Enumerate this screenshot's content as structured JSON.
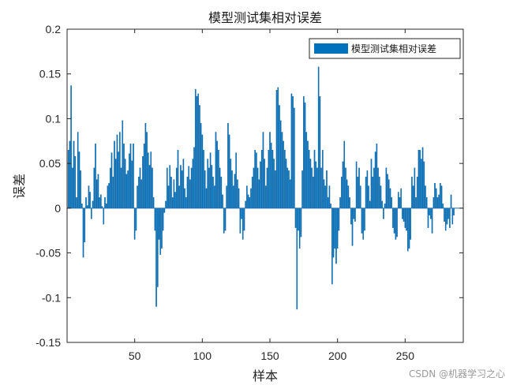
{
  "chart_data": {
    "type": "bar",
    "title": "模型测试集相对误差",
    "xlabel": "样本",
    "ylabel": "误差",
    "xlim": [
      0,
      293
    ],
    "ylim": [
      -0.15,
      0.2
    ],
    "xticks": [
      50,
      100,
      150,
      200,
      250
    ],
    "yticks": [
      -0.15,
      -0.1,
      -0.05,
      0,
      0.05,
      0.1,
      0.15,
      0.2
    ],
    "ytick_labels": [
      "-0.15",
      "-0.1",
      "-0.05",
      "0",
      "0.05",
      "0.1",
      "0.15",
      "0.2"
    ],
    "legend": {
      "placement": "top-right",
      "entries": [
        "模型测试集相对误差"
      ]
    },
    "grid": false,
    "bar_color": "#0072BD",
    "series": [
      {
        "name": "模型测试集相对误差",
        "values": [
          0.065,
          0.075,
          0.137,
          0.045,
          0.075,
          0.058,
          0.012,
          0.085,
          0.063,
          0.042,
          0.005,
          -0.055,
          -0.038,
          0.012,
          0.003,
          0.025,
          0.018,
          -0.012,
          0.008,
          0.045,
          0.072,
          0.032,
          0.038,
          0.012,
          0.015,
          0.002,
          -0.018,
          0.012,
          0.005,
          0.025,
          0.028,
          0.045,
          0.062,
          0.035,
          0.075,
          0.055,
          0.082,
          0.063,
          0.085,
          0.045,
          0.098,
          0.072,
          0.055,
          0.038,
          0.042,
          0.061,
          0.072,
          0.053,
          0.072,
          -0.035,
          -0.025,
          0.025,
          0.035,
          0.045,
          0.032,
          0.058,
          0.072,
          0.095,
          0.085,
          0.062,
          0.048,
          0.063,
          0.045,
          0.012,
          -0.025,
          -0.11,
          -0.088,
          -0.035,
          -0.052,
          -0.045,
          -0.025,
          -0.005,
          0.008,
          0.045,
          0.025,
          0.048,
          0.035,
          0.012,
          0.032,
          0.018,
          0.045,
          0.065,
          0.025,
          0.048,
          0.042,
          0.055,
          0.022,
          0.012,
          0.035,
          0.047,
          0.032,
          0.045,
          0.055,
          0.068,
          0.133,
          0.125,
          0.128,
          0.115,
          0.095,
          0.082,
          0.065,
          0.042,
          0.022,
          0.055,
          0.045,
          0.062,
          0.048,
          0.035,
          0.025,
          0.085,
          0.075,
          0.065,
          0.045,
          0.035,
          0.015,
          -0.028,
          -0.025,
          0.025,
          0.095,
          0.082,
          0.055,
          0.042,
          0.025,
          0.038,
          0.062,
          0.032,
          0.022,
          -0.028,
          -0.012,
          -0.035,
          -0.025,
          0.008,
          0.025,
          0.015,
          0.012,
          0.022,
          0.035,
          0.045,
          0.065,
          0.062,
          0.045,
          0.032,
          0.052,
          0.065,
          0.085,
          0.055,
          0.025,
          0.045,
          0.065,
          0.085,
          0.073,
          0.065,
          0.055,
          0.042,
          0.132,
          0.135,
          0.115,
          0.098,
          0.085,
          0.075,
          0.065,
          0.055,
          0.045,
          0.042,
          0.032,
          0.128,
          0.125,
          0.112,
          -0.022,
          -0.113,
          -0.025,
          -0.045,
          -0.032,
          0.042,
          0.125,
          0.118,
          0.085,
          0.075,
          0.065,
          0.055,
          0.045,
          0.035,
          0.065,
          0.052,
          0.045,
          0.158,
          0.125,
          0.045,
          0.065,
          0.032,
          0.025,
          0.042,
          0.012,
          0.025,
          0.005,
          -0.085,
          -0.055,
          -0.045,
          -0.062,
          -0.045,
          -0.025,
          0.012,
          0.035,
          0.052,
          0.075,
          0.045,
          0.032,
          0.025,
          0.012,
          -0.018,
          -0.042,
          -0.012,
          -0.015,
          0.052,
          0.035,
          0.045,
          0.025,
          -0.028,
          -0.035,
          -0.025,
          0.035,
          0.042,
          0.025,
          0.008,
          0.055,
          0.035,
          0.045,
          0.063,
          0.072,
          0.045,
          0.035,
          0.025,
          0.008,
          -0.012,
          0.005,
          0.045,
          0.038,
          0.032,
          0.022,
          0.012,
          -0.022,
          -0.028,
          -0.035,
          -0.032,
          0.018,
          0.012,
          0.022,
          -0.012,
          -0.015,
          -0.022,
          -0.025,
          -0.048,
          -0.045,
          -0.035,
          0.035,
          0.025,
          0.045,
          0.012,
          0.035,
          0.065,
          0.065,
          0.055,
          0.068,
          0.052,
          0.025,
          0.012,
          -0.022,
          -0.008,
          -0.012,
          -0.028,
          0.012,
          0.028,
          0.022,
          0.012,
          0.015,
          0.028,
          0.025,
          0.005,
          -0.015,
          -0.025,
          -0.018,
          -0.012,
          -0.022,
          0.015,
          -0.018,
          -0.008
        ]
      }
    ]
  },
  "watermark": "CSDN @机器学习之心"
}
